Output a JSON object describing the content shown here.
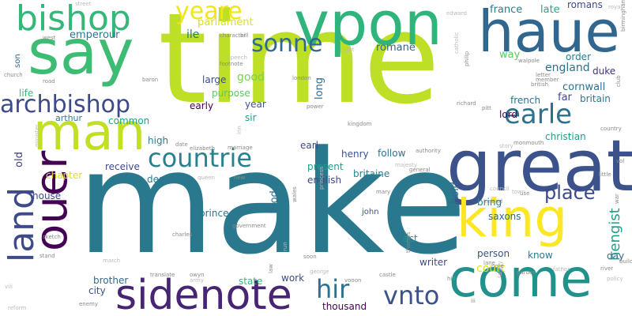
{
  "word_cloud": {
    "background": "#ffffff",
    "palette": [
      "#440154",
      "#3b528b",
      "#21918c",
      "#5ec962",
      "#fde725"
    ],
    "words": [
      {
        "text": "make",
        "color": "#2a788e"
      },
      {
        "text": "time",
        "color": "#bddf26"
      },
      {
        "text": "haue",
        "color": "#31668e"
      },
      {
        "text": "say",
        "color": "#3fbc73"
      },
      {
        "text": "vpon",
        "color": "#2fb47c"
      },
      {
        "text": "great",
        "color": "#3b528b"
      },
      {
        "text": "man",
        "color": "#c2df23"
      },
      {
        "text": "ouer",
        "color": "#440154"
      },
      {
        "text": "land",
        "color": "#3e4a89"
      },
      {
        "text": "come",
        "color": "#21918c"
      },
      {
        "text": "king",
        "color": "#fde725"
      },
      {
        "text": "sidenote",
        "color": "#482475"
      },
      {
        "text": "bishop",
        "color": "#35b779"
      },
      {
        "text": "archbishop",
        "color": "#3e4989"
      },
      {
        "text": "earle",
        "color": "#2c728e"
      },
      {
        "text": "countrie",
        "color": "#26828e"
      },
      {
        "text": "sonne",
        "color": "#31688e"
      },
      {
        "text": "yeare",
        "color": "#f1e51d"
      },
      {
        "text": "vnto",
        "color": "#3b528b"
      },
      {
        "text": "hir",
        "color": "#2c728e"
      },
      {
        "text": "place",
        "color": "#3e4989"
      },
      {
        "text": "hengist",
        "color": "#1f9e89"
      },
      {
        "text": "parliament",
        "color": "#d8e219"
      },
      {
        "text": "emperour",
        "color": "#2a788e"
      },
      {
        "text": "ile",
        "color": "#2a788e"
      },
      {
        "text": "romane",
        "color": "#31688e"
      },
      {
        "text": "france",
        "color": "#287d8e"
      },
      {
        "text": "late",
        "color": "#22a785"
      },
      {
        "text": "romans",
        "color": "#3e4a89"
      },
      {
        "text": "way",
        "color": "#5ec962"
      },
      {
        "text": "order",
        "color": "#287d8e"
      },
      {
        "text": "england",
        "color": "#2e6e8e"
      },
      {
        "text": "duke",
        "color": "#46307e"
      },
      {
        "text": "cornwall",
        "color": "#2c728e"
      },
      {
        "text": "far",
        "color": "#3e4a89"
      },
      {
        "text": "britain",
        "color": "#2a788e"
      },
      {
        "text": "french",
        "color": "#2c728e"
      },
      {
        "text": "lord",
        "color": "#440154"
      },
      {
        "text": "christian",
        "color": "#1f9e89"
      },
      {
        "text": "good",
        "color": "#7ad151"
      },
      {
        "text": "large",
        "color": "#3e4a89"
      },
      {
        "text": "purpose",
        "color": "#5ec962"
      },
      {
        "text": "year",
        "color": "#3b528b"
      },
      {
        "text": "sir",
        "color": "#1f9e89"
      },
      {
        "text": "early",
        "color": "#440154"
      },
      {
        "text": "long",
        "color": "#31688e"
      },
      {
        "text": "life",
        "color": "#35b779"
      },
      {
        "text": "arthur",
        "color": "#26828e"
      },
      {
        "text": "common",
        "color": "#20a386"
      },
      {
        "text": "high",
        "color": "#287d8e"
      },
      {
        "text": "earl",
        "color": "#3e4a89"
      },
      {
        "text": "henry",
        "color": "#3b528b"
      },
      {
        "text": "follow",
        "color": "#2c728e"
      },
      {
        "text": "present",
        "color": "#1f9e89"
      },
      {
        "text": "britaine",
        "color": "#26828e"
      },
      {
        "text": "english",
        "color": "#3e4989"
      },
      {
        "text": "feod",
        "color": "#2c728e"
      },
      {
        "text": "hold",
        "color": "#31688e"
      },
      {
        "text": "receive",
        "color": "#3e4989"
      },
      {
        "text": "chapter",
        "color": "#d8e219"
      },
      {
        "text": "old",
        "color": "#433e85"
      },
      {
        "text": "house",
        "color": "#3e4a89"
      },
      {
        "text": "death",
        "color": "#2a788e"
      },
      {
        "text": "bring",
        "color": "#287d8e"
      },
      {
        "text": "saxons",
        "color": "#31688e"
      },
      {
        "text": "prince",
        "color": "#2c728e"
      },
      {
        "text": "act",
        "color": "#21918c"
      },
      {
        "text": "writer",
        "color": "#3e4989"
      },
      {
        "text": "person",
        "color": "#3b528b"
      },
      {
        "text": "know",
        "color": "#2a788e"
      },
      {
        "text": "day",
        "color": "#31688e"
      },
      {
        "text": "court",
        "color": "#dfe318"
      },
      {
        "text": "brother",
        "color": "#31688e"
      },
      {
        "text": "city",
        "color": "#3b528b"
      },
      {
        "text": "state",
        "color": "#35b779"
      },
      {
        "text": "work",
        "color": "#3e4989"
      },
      {
        "text": "thousand",
        "color": "#440154"
      },
      {
        "text": "john",
        "color": "#3b528b"
      },
      {
        "text": "son",
        "color": "#31688e"
      },
      {
        "text": "church",
        "color": "#8a8a8a"
      },
      {
        "text": "road",
        "color": "#8a8a8a"
      },
      {
        "text": "west",
        "color": "#8a8a8a"
      },
      {
        "text": "power",
        "color": "#8a8a8a"
      },
      {
        "text": "richard",
        "color": "#8a8a8a"
      },
      {
        "text": "pitt",
        "color": "#8a8a8a"
      },
      {
        "text": "monmouth",
        "color": "#8a8a8a"
      },
      {
        "text": "story",
        "color": "#bbbbbb"
      },
      {
        "text": "letter",
        "color": "#8a8a8a"
      },
      {
        "text": "british",
        "color": "#8a8a8a"
      },
      {
        "text": "member",
        "color": "#8a8a8a"
      },
      {
        "text": "walpole",
        "color": "#8a8a8a"
      },
      {
        "text": "country",
        "color": "#8a8a8a"
      },
      {
        "text": "club",
        "color": "#8a8a8a"
      },
      {
        "text": "royal",
        "color": "#bbbbbb"
      },
      {
        "text": "birmingham",
        "color": "#8a8a8a"
      },
      {
        "text": "street",
        "color": "#bbbbbb"
      },
      {
        "text": "edward",
        "color": "#bbbbbb"
      },
      {
        "text": "philip",
        "color": "#8a8a8a"
      },
      {
        "text": "catholic",
        "color": "#bbbbbb"
      },
      {
        "text": "right",
        "color": "#bbbbbb"
      },
      {
        "text": "bill",
        "color": "#8a8a8a"
      },
      {
        "text": "character",
        "color": "#8a8a8a"
      },
      {
        "text": "speech",
        "color": "#bbbbbb"
      },
      {
        "text": "footnote",
        "color": "#8a8a8a"
      },
      {
        "text": "london",
        "color": "#8a8a8a"
      },
      {
        "text": "baron",
        "color": "#8a8a8a"
      },
      {
        "text": "inn",
        "color": "#bbbbbb"
      },
      {
        "text": "minister",
        "color": "#bbbbbb"
      },
      {
        "text": "elizabeth",
        "color": "#8a8a8a"
      },
      {
        "text": "marriage",
        "color": "#8a8a8a"
      },
      {
        "text": "kingdom",
        "color": "#8a8a8a"
      },
      {
        "text": "authority",
        "color": "#8a8a8a"
      },
      {
        "text": "princess",
        "color": "#bbbbbb"
      },
      {
        "text": "general",
        "color": "#8a8a8a"
      },
      {
        "text": "majesty",
        "color": "#bbbbbb"
      },
      {
        "text": "mary",
        "color": "#8a8a8a"
      },
      {
        "text": "use",
        "color": "#8a8a8a"
      },
      {
        "text": "town",
        "color": "#bbbbbb"
      },
      {
        "text": "ireland",
        "color": "#8a8a8a"
      },
      {
        "text": "council",
        "color": "#bbbbbb"
      },
      {
        "text": "little",
        "color": "#8a8a8a"
      },
      {
        "text": "war",
        "color": "#8a8a8a"
      },
      {
        "text": "vol",
        "color": "#8a8a8a"
      },
      {
        "text": "queen",
        "color": "#bbbbbb"
      },
      {
        "text": "new",
        "color": "#8a8a8a"
      },
      {
        "text": "date",
        "color": "#8a8a8a"
      },
      {
        "text": "reform",
        "color": "#bbbbbb"
      },
      {
        "text": "viii",
        "color": "#bbbbbb"
      },
      {
        "text": "stand",
        "color": "#8a8a8a"
      },
      {
        "text": "sketch",
        "color": "#8a8a8a"
      },
      {
        "text": "march",
        "color": "#bbbbbb"
      },
      {
        "text": "charles",
        "color": "#8a8a8a"
      },
      {
        "text": "enemy",
        "color": "#8a8a8a"
      },
      {
        "text": "army",
        "color": "#bbbbbb"
      },
      {
        "text": "translate",
        "color": "#8a8a8a"
      },
      {
        "text": "owyn",
        "color": "#8a8a8a"
      },
      {
        "text": "law",
        "color": "#8a8a8a"
      },
      {
        "text": "run",
        "color": "#bbbbbb"
      },
      {
        "text": "government",
        "color": "#8a8a8a"
      },
      {
        "text": "wales",
        "color": "#8a8a8a"
      },
      {
        "text": "george",
        "color": "#bbbbbb"
      },
      {
        "text": "soon",
        "color": "#8a8a8a"
      },
      {
        "text": "vooon",
        "color": "#8a8a8a"
      },
      {
        "text": "castle",
        "color": "#8a8a8a"
      },
      {
        "text": "hill",
        "color": "#8a8a8a"
      },
      {
        "text": "thomas",
        "color": "#8a8a8a"
      },
      {
        "text": "iii",
        "color": "#8a8a8a"
      },
      {
        "text": "lane",
        "color": "#8a8a8a"
      },
      {
        "text": "family",
        "color": "#bbbbbb"
      },
      {
        "text": "note",
        "color": "#8a8a8a"
      },
      {
        "text": "garden",
        "color": "#8a8a8a"
      },
      {
        "text": "father",
        "color": "#bbbbbb"
      },
      {
        "text": "river",
        "color": "#8a8a8a"
      },
      {
        "text": "building",
        "color": "#8a8a8a"
      },
      {
        "text": "policy",
        "color": "#bbbbbb"
      },
      {
        "text": "water",
        "color": "#8a8a8a"
      },
      {
        "text": "hall",
        "color": "#8a8a8a"
      },
      {
        "text": "theatre",
        "color": "#8a8a8a"
      }
    ]
  }
}
